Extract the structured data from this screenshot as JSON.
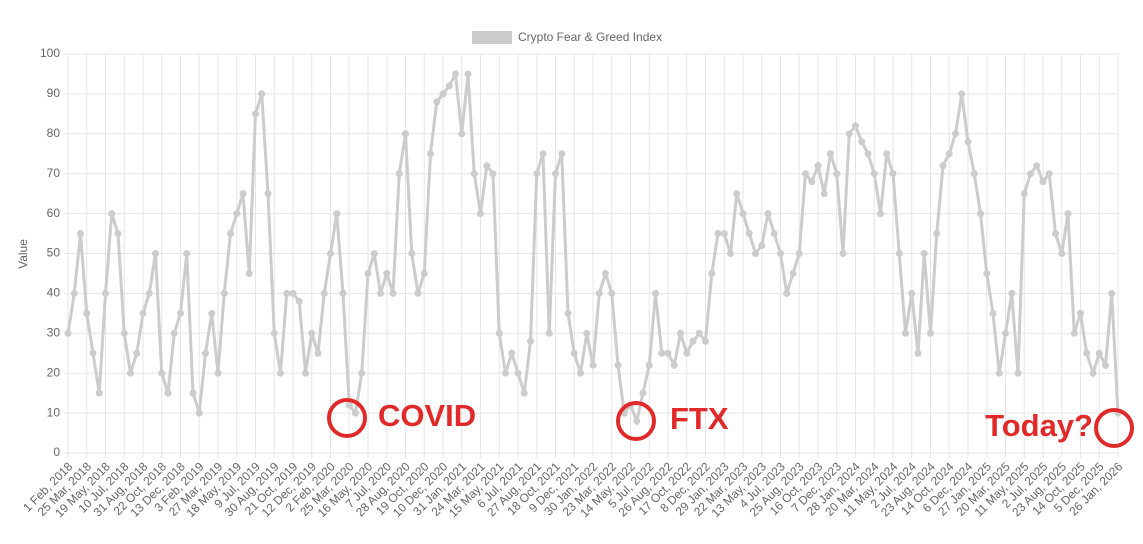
{
  "chart_data": {
    "type": "line",
    "y_label": "Value",
    "ylim": [
      0,
      100
    ],
    "yticks": [
      0,
      10,
      20,
      30,
      40,
      50,
      60,
      70,
      80,
      90,
      100
    ],
    "grid": true,
    "annotations": [
      "COVID",
      "FTX",
      "Today?"
    ],
    "categories": [
      "1 Feb, 2018",
      null,
      null,
      "25 Mar, 2018",
      null,
      null,
      "19 May, 2018",
      null,
      null,
      "10 Jul, 2018",
      null,
      null,
      "31 Aug, 2018",
      null,
      null,
      "22 Oct, 2018",
      null,
      null,
      "13 Dec, 2018",
      null,
      null,
      "3 Feb, 2019",
      null,
      null,
      "27 Mar, 2019",
      null,
      null,
      "18 May, 2019",
      null,
      null,
      "9 Jul, 2019",
      null,
      null,
      "30 Aug, 2019",
      null,
      null,
      "21 Oct, 2019",
      null,
      null,
      "12 Dec, 2019",
      null,
      null,
      "2 Feb, 2020",
      null,
      null,
      "25 Mar, 2020",
      null,
      null,
      "16 May, 2020",
      null,
      null,
      "7 Jul, 2020",
      null,
      null,
      "28 Aug, 2020",
      null,
      null,
      "19 Oct, 2020",
      null,
      null,
      "10 Dec, 2020",
      null,
      null,
      "31 Jan, 2021",
      null,
      null,
      "24 Mar, 2021",
      null,
      null,
      "15 May, 2021",
      null,
      null,
      "6 Jul, 2021",
      null,
      null,
      "27 Aug, 2021",
      null,
      null,
      "18 Oct, 2021",
      null,
      null,
      "9 Dec, 2021",
      null,
      null,
      "30 Jan, 2022",
      null,
      null,
      "23 Mar, 2022",
      null,
      null,
      "14 May, 2022",
      null,
      null,
      "5 Jul, 2022",
      null,
      null,
      "26 Aug, 2022",
      null,
      null,
      "17 Oct, 2022",
      null,
      null,
      "8 Dec, 2022",
      null,
      null,
      "29 Jan, 2023",
      null,
      null,
      "22 Mar, 2023",
      null,
      null,
      "13 May, 2023",
      null,
      null,
      "4 Jul, 2023",
      null,
      null,
      "25 Aug, 2023",
      null,
      null,
      "16 Oct, 2023",
      null,
      null,
      "7 Dec, 2023",
      null,
      null,
      "28 Jan, 2024",
      null,
      null,
      "20 Mar, 2024",
      null,
      null,
      "11 May, 2024",
      null,
      null,
      "2 Jul, 2024",
      null,
      null,
      "23 Aug, 2024",
      null,
      null,
      "14 Oct, 2024",
      null,
      null,
      "6 Dec, 2024",
      null,
      null,
      "27 Jan, 2025",
      null,
      null,
      "20 Mar, 2025",
      null,
      null,
      "11 May, 2025",
      null,
      null,
      "2 Jul, 2025",
      null,
      null,
      "23 Aug, 2025",
      null,
      null,
      "14 Oct, 2025",
      null,
      null,
      "5 Dec, 2025",
      null,
      null,
      "26 Jan, 2026"
    ],
    "series": [
      {
        "name": "Crypto Fear & Greed Index",
        "color": "#cccccc",
        "values": [
          30,
          40,
          55,
          35,
          25,
          15,
          40,
          60,
          55,
          30,
          20,
          25,
          35,
          40,
          50,
          20,
          15,
          30,
          35,
          50,
          15,
          10,
          25,
          35,
          20,
          40,
          55,
          60,
          65,
          45,
          85,
          90,
          65,
          30,
          20,
          40,
          40,
          38,
          20,
          30,
          25,
          40,
          50,
          60,
          40,
          12,
          10,
          20,
          45,
          50,
          40,
          45,
          40,
          70,
          80,
          50,
          40,
          45,
          75,
          88,
          90,
          92,
          95,
          80,
          95,
          70,
          60,
          72,
          70,
          30,
          20,
          25,
          20,
          15,
          28,
          70,
          75,
          30,
          70,
          75,
          35,
          25,
          20,
          30,
          22,
          40,
          45,
          40,
          22,
          10,
          12,
          8,
          15,
          22,
          40,
          25,
          25,
          22,
          30,
          25,
          28,
          30,
          28,
          45,
          55,
          55,
          50,
          65,
          60,
          55,
          50,
          52,
          60,
          55,
          50,
          40,
          45,
          50,
          70,
          68,
          72,
          65,
          75,
          70,
          50,
          80,
          82,
          78,
          75,
          70,
          60,
          75,
          70,
          50,
          30,
          40,
          25,
          50,
          30,
          55,
          72,
          75,
          80,
          90,
          78,
          70,
          60,
          45,
          35,
          20,
          30,
          40,
          20,
          65,
          70,
          72,
          68,
          70,
          55,
          50,
          60,
          30,
          35,
          25,
          20,
          25,
          22,
          40,
          10
        ]
      }
    ]
  }
}
